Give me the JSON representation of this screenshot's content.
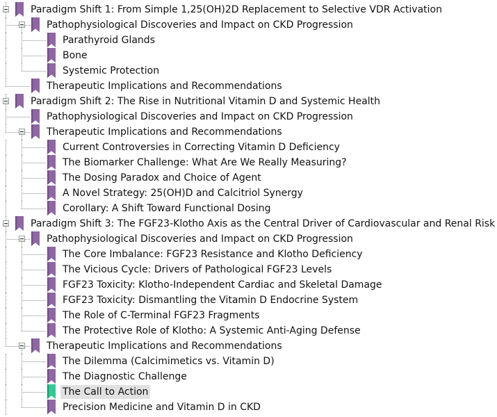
{
  "colors": {
    "bookmark": "#8e67a3",
    "bookmark_selected": "#33c894",
    "selection_bg": "#e1e1e1"
  },
  "bookmarks": [
    {
      "level": 0,
      "expanded": true,
      "label": "Paradigm Shift 1: From Simple 1,25(OH)2D Replacement to Selective VDR Activation"
    },
    {
      "level": 1,
      "expanded": true,
      "label": "Pathophysiological Discoveries and Impact on CKD Progression"
    },
    {
      "level": 2,
      "label": "Parathyroid Glands"
    },
    {
      "level": 2,
      "label": "Bone"
    },
    {
      "level": 2,
      "label": "Systemic Protection"
    },
    {
      "level": 1,
      "label": "Therapeutic Implications and Recommendations"
    },
    {
      "level": 0,
      "expanded": true,
      "label": "Paradigm Shift 2: The Rise in Nutritional Vitamin D and Systemic Health"
    },
    {
      "level": 1,
      "label": "Pathophysiological Discoveries and Impact on CKD Progression"
    },
    {
      "level": 1,
      "expanded": true,
      "label": "Therapeutic Implications and Recommendations"
    },
    {
      "level": 2,
      "label": "Current Controversies in Correcting Vitamin D Deficiency"
    },
    {
      "level": 2,
      "label": "The Biomarker Challenge: What Are We Really Measuring?"
    },
    {
      "level": 2,
      "label": "The Dosing Paradox and Choice of Agent"
    },
    {
      "level": 2,
      "label": "A Novel Strategy: 25(OH)D and Calcitriol Synergy"
    },
    {
      "level": 2,
      "label": "Corollary: A Shift Toward Functional Dosing"
    },
    {
      "level": 0,
      "expanded": true,
      "label": "Paradigm Shift 3: The FGF23-Klotho Axis as the Central Driver of Cardiovascular and Renal Risk"
    },
    {
      "level": 1,
      "expanded": true,
      "label": "Pathophysiological Discoveries and Impact on CKD Progression"
    },
    {
      "level": 2,
      "label": "The Core Imbalance: FGF23 Resistance and Klotho Deficiency"
    },
    {
      "level": 2,
      "label": "The Vicious Cycle: Drivers of Pathological FGF23 Levels"
    },
    {
      "level": 2,
      "label": "FGF23 Toxicity: Klotho-Independent Cardiac and Skeletal Damage"
    },
    {
      "level": 2,
      "label": "FGF23 Toxicity: Dismantling the Vitamin D Endocrine System"
    },
    {
      "level": 2,
      "label": "The Role of C-Terminal FGF23 Fragments"
    },
    {
      "level": 2,
      "label": "The Protective Role of Klotho: A Systemic Anti-Aging Defense"
    },
    {
      "level": 1,
      "expanded": true,
      "label": "Therapeutic Implications and Recommendations"
    },
    {
      "level": 2,
      "label": "The Dilemma (Calcimimetics vs. Vitamin D)"
    },
    {
      "level": 2,
      "label": "The Diagnostic Challenge"
    },
    {
      "level": 2,
      "selected": true,
      "label": "The Call to Action"
    },
    {
      "level": 2,
      "label": "Precision Medicine and Vitamin D in CKD"
    }
  ]
}
